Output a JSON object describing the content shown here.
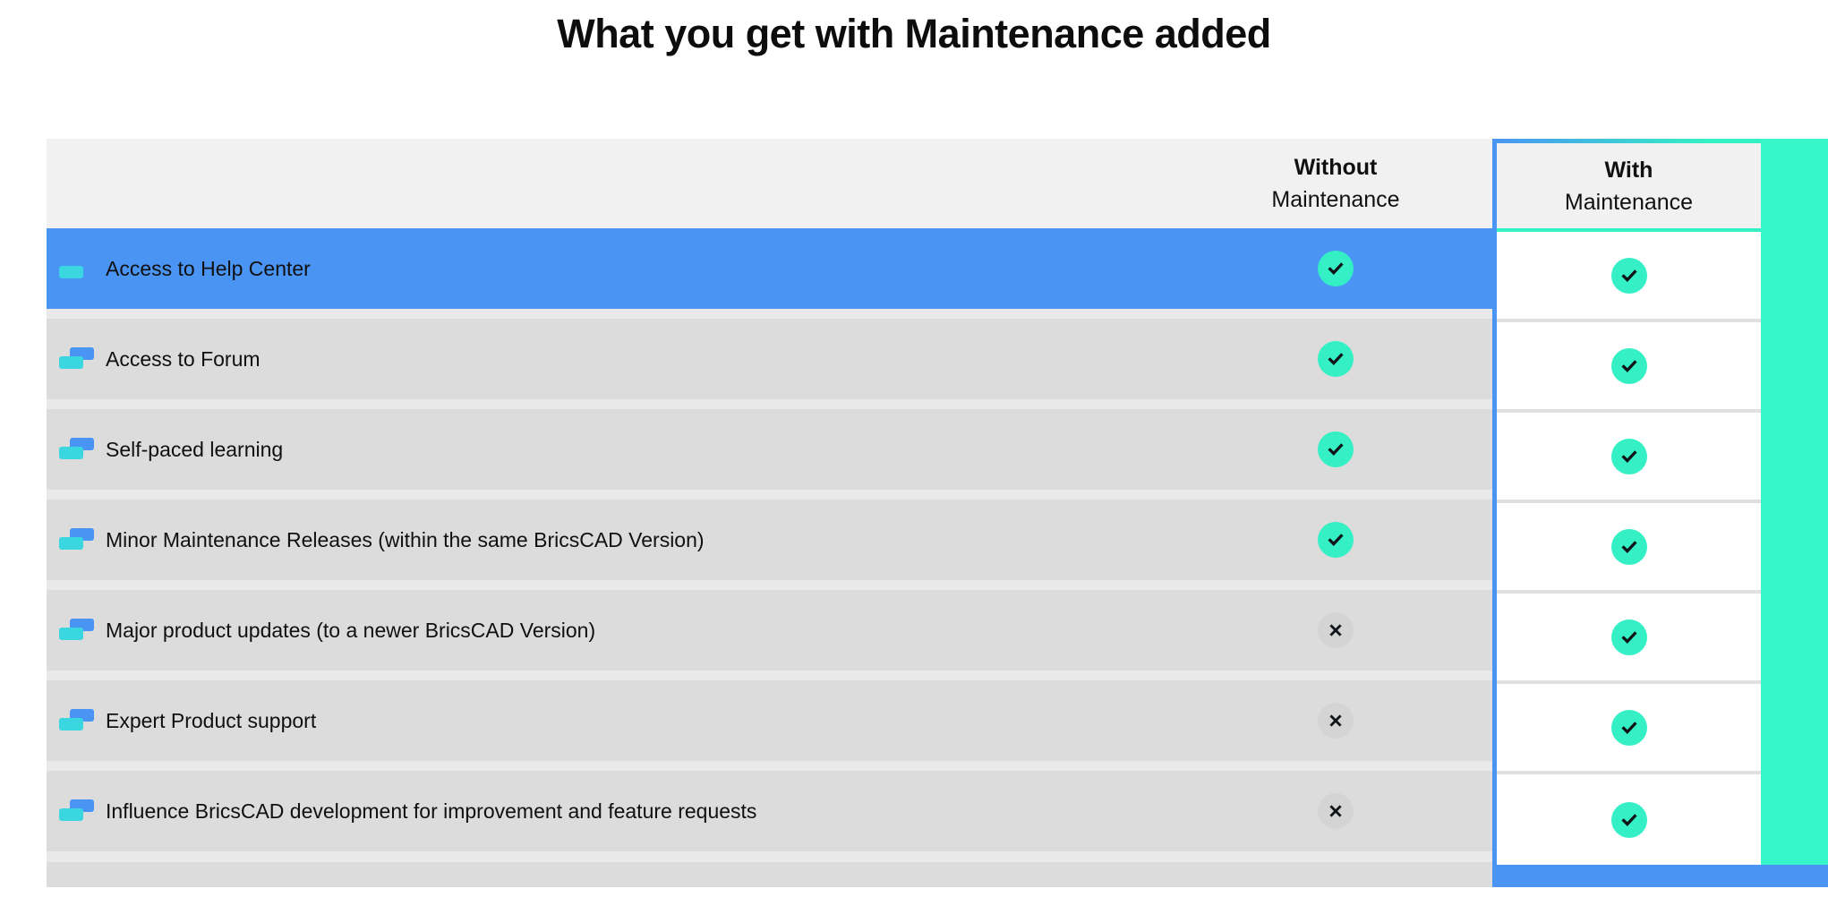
{
  "title": "What you get with Maintenance added",
  "columns": {
    "without": {
      "line1": "Without",
      "line2": "Maintenance"
    },
    "with": {
      "line1": "With",
      "line2": "Maintenance"
    }
  },
  "rows": [
    {
      "label": "Access to Help Center",
      "without": "check",
      "with": "check",
      "highlighted": true
    },
    {
      "label": "Access to Forum",
      "without": "check",
      "with": "check",
      "highlighted": false
    },
    {
      "label": "Self-paced learning",
      "without": "check",
      "with": "check",
      "highlighted": false
    },
    {
      "label": "Minor Maintenance Releases (within the same BricsCAD Version)",
      "without": "check",
      "with": "check",
      "highlighted": false
    },
    {
      "label": "Major product updates (to a newer BricsCAD Version)",
      "without": "cross",
      "with": "check",
      "highlighted": false
    },
    {
      "label": "Expert Product support",
      "without": "cross",
      "with": "check",
      "highlighted": false
    },
    {
      "label": "Influence BricsCAD development for improvement and feature requests",
      "without": "cross",
      "with": "check",
      "highlighted": false
    }
  ],
  "colors": {
    "accent_blue": "#4a94f4",
    "accent_teal": "#34f0c4",
    "teal_band": "#37f6c9",
    "icon_cyan": "#3bd7e0",
    "row_gray": "#dcdcdc",
    "gap_gray": "#e9e9e9",
    "header_gray": "#f1f1f1",
    "cross_gray": "#d4d4d4",
    "cell_sep": "#e0e0e0",
    "text_dark": "#111111",
    "glyph_dark": "#101418"
  }
}
